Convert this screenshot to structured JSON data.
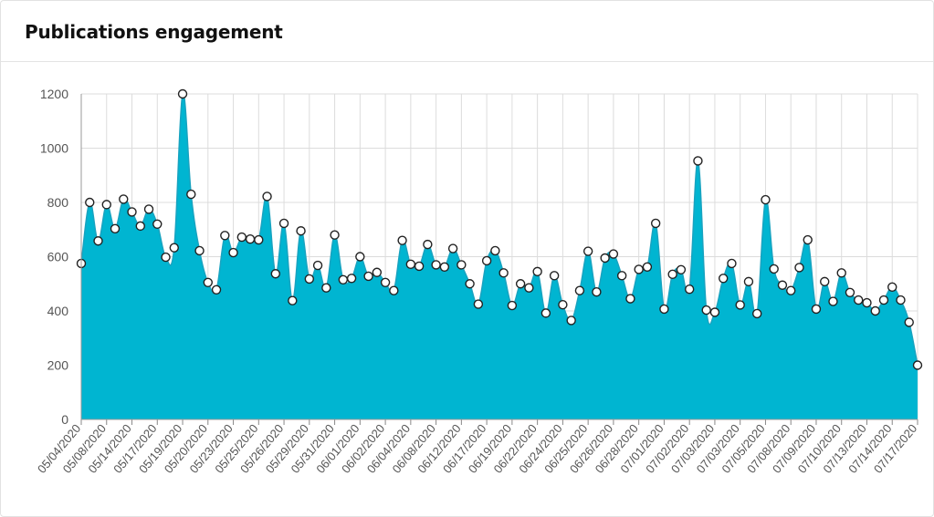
{
  "header": {
    "title": "Publications engagement"
  },
  "colors": {
    "area": "#00b5d1",
    "line": "#18a3c0",
    "grid": "#dcdcdc",
    "marker_fill": "#ffffff",
    "marker_stroke": "#222222"
  },
  "chart_data": {
    "type": "area",
    "title": "Publications engagement",
    "xlabel": "",
    "ylabel": "",
    "ylim": [
      0,
      1200
    ],
    "y_ticks": [
      0,
      200,
      400,
      600,
      800,
      1000,
      1200
    ],
    "grid": true,
    "x_tick_labels": [
      "05/04/2020",
      "05/08/2020",
      "05/14/2020",
      "05/17/2020",
      "05/19/2020",
      "05/20/2020",
      "05/23/2020",
      "05/25/2020",
      "05/26/2020",
      "05/29/2020",
      "05/31/2020",
      "06/01/2020",
      "06/02/2020",
      "06/04/2020",
      "06/08/2020",
      "06/12/2020",
      "06/17/2020",
      "06/19/2020",
      "06/22/2020",
      "06/24/2020",
      "06/25/2020",
      "06/26/2020",
      "06/28/2020",
      "07/01/2020",
      "07/02/2020",
      "07/03/2020",
      "07/03/2020",
      "07/05/2020",
      "07/08/2020",
      "07/09/2020",
      "07/10/2020",
      "07/13/2020",
      "07/14/2020",
      "07/17/2020"
    ],
    "values": [
      575,
      800,
      658,
      792,
      703,
      812,
      765,
      713,
      775,
      720,
      598,
      633,
      1200,
      830,
      622,
      505,
      478,
      678,
      615,
      672,
      665,
      662,
      822,
      537,
      723,
      438,
      695,
      518,
      568,
      485,
      680,
      515,
      520,
      600,
      528,
      542,
      505,
      475,
      660,
      572,
      565,
      645,
      570,
      562,
      630,
      570,
      500,
      425,
      585,
      622,
      540,
      420,
      500,
      485,
      545,
      392,
      530,
      423,
      365,
      475,
      620,
      470,
      595,
      610,
      530,
      445,
      553,
      562,
      723,
      407,
      535,
      552,
      480,
      953,
      403,
      395,
      520,
      575,
      422,
      508,
      390,
      810,
      555,
      495,
      475,
      560,
      662,
      407,
      508,
      435,
      540,
      468,
      440,
      430,
      400,
      440,
      488,
      440,
      358,
      200
    ]
  }
}
